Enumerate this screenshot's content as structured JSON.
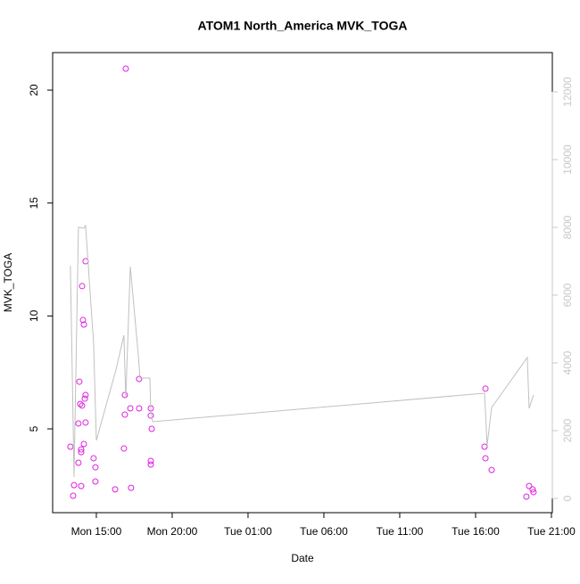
{
  "chart_data": {
    "type": "scatter",
    "title": "ATOM1 North_America MVK_TOGA",
    "xlabel": "Date",
    "ylabel": "MVK_TOGA",
    "xlim": [
      12.12,
      45.06
    ],
    "xticks": [
      {
        "value": 15,
        "label": "Mon 15:00"
      },
      {
        "value": 20,
        "label": "Mon 20:00"
      },
      {
        "value": 25,
        "label": "Tue 01:00"
      },
      {
        "value": 30,
        "label": "Tue 06:00"
      },
      {
        "value": 35,
        "label": "Tue 11:00"
      },
      {
        "value": 40,
        "label": "Tue 16:00"
      },
      {
        "value": 45,
        "label": "Tue 21:00"
      }
    ],
    "ylim": [
      1.29,
      21.66
    ],
    "yticks": [
      5,
      10,
      15,
      20
    ],
    "y2lim": [
      -421,
      13158
    ],
    "y2ticks": [
      0,
      2000,
      4000,
      6000,
      8000,
      10000,
      12000
    ],
    "y2color": "#c8c8c8",
    "series": [
      {
        "type": "scatter",
        "color": "#e020e0",
        "x": [
          13.29,
          13.47,
          13.53,
          13.82,
          13.82,
          13.88,
          13.94,
          14.0,
          14.0,
          14.0,
          14.06,
          14.06,
          14.12,
          14.18,
          14.18,
          14.24,
          14.29,
          14.29,
          14.29,
          14.82,
          14.94,
          14.94,
          16.24,
          16.82,
          16.88,
          16.88,
          16.94,
          17.24,
          17.29,
          17.82,
          17.82,
          18.59,
          18.59,
          18.59,
          18.59,
          18.65,
          40.65,
          40.59,
          40.65,
          41.06,
          43.35,
          43.53,
          43.76,
          43.82
        ],
        "values": [
          4.21,
          2.04,
          2.51,
          3.5,
          5.24,
          7.09,
          6.1,
          4.09,
          3.97,
          2.47,
          11.32,
          6.03,
          9.82,
          9.62,
          4.33,
          6.34,
          6.5,
          12.42,
          5.28,
          3.7,
          3.3,
          2.67,
          2.32,
          4.13,
          5.63,
          6.5,
          20.95,
          5.91,
          2.39,
          7.21,
          5.91,
          5.91,
          5.59,
          3.58,
          3.42,
          5.0,
          6.78,
          4.21,
          3.7,
          3.18,
          2.0,
          2.47,
          2.32,
          2.2
        ]
      },
      {
        "type": "line",
        "axis": "y2",
        "color": "#c0c0c0",
        "x": [
          13.29,
          13.53,
          13.82,
          14.18,
          14.29,
          14.82,
          15.0,
          16.29,
          16.82,
          16.94,
          17.24,
          17.76,
          17.88,
          18.53,
          18.59,
          18.71,
          40.59,
          40.65,
          40.76,
          41.06,
          43.41,
          43.53,
          43.82
        ],
        "values": [
          6868,
          632,
          8000,
          7974,
          8053,
          4579,
          1711,
          3789,
          4816,
          2947,
          6842,
          4263,
          3553,
          3553,
          2605,
          2263,
          3105,
          2605,
          1553,
          2684,
          4158,
          2658,
          3053
        ]
      }
    ]
  }
}
